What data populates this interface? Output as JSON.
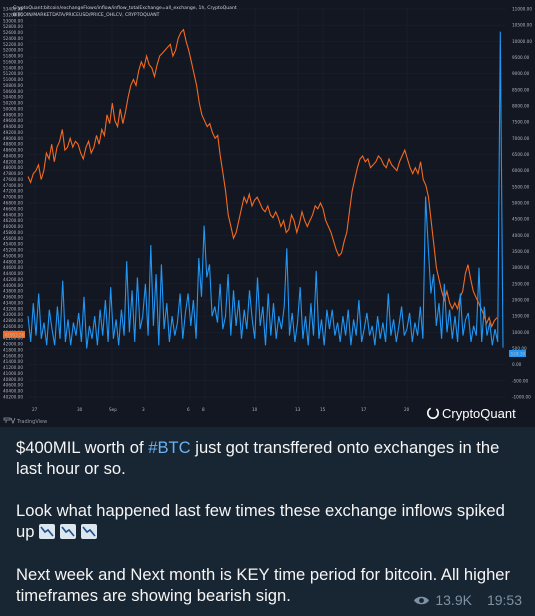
{
  "chart_header": {
    "line1": "CryptoQuant:bitcoin/exchangeFlows/inflow/inflow_totalExchange=all_exchange, 1h, CryptoQuant",
    "line2": "BITCOIN/MARKETDATA/PRICEUSD/PRICE_OHLCV, CRYPTOQUANT"
  },
  "brand": "CryptoQuant",
  "tv_logo": "TradingView",
  "colors": {
    "price": "#f26a21",
    "inflow": "#2196f3",
    "background": "#131722",
    "grid": "#1e2230"
  },
  "chart_data": {
    "type": "line",
    "x_ticks": [
      "27",
      "30",
      "Sep",
      "3",
      "6",
      "8",
      "10",
      "13",
      "15",
      "17",
      "20"
    ],
    "left_axis": {
      "ticks": [
        "53400.00",
        "53200.00",
        "53000.00",
        "52800.00",
        "52600.00",
        "52400.00",
        "52200.00",
        "52000.00",
        "51800.00",
        "51600.00",
        "51400.00",
        "51200.00",
        "51000.00",
        "50800.00",
        "50600.00",
        "50400.00",
        "50200.00",
        "50000.00",
        "49800.00",
        "49600.00",
        "49400.00",
        "49200.00",
        "49000.00",
        "48800.00",
        "48600.00",
        "48400.00",
        "48200.00",
        "48000.00",
        "47800.00",
        "47600.00",
        "47400.00",
        "47200.00",
        "47000.00",
        "46800.00",
        "46600.00",
        "46400.00",
        "46200.00",
        "46000.00",
        "45800.00",
        "45600.00",
        "45400.00",
        "45200.00",
        "45000.00",
        "44800.00",
        "44600.00",
        "44400.00",
        "44200.00",
        "44000.00",
        "43800.00",
        "43600.00",
        "43400.00",
        "43200.00",
        "43000.00",
        "42800.00",
        "42600.00",
        "42400.00",
        "42200.00",
        "42000.00",
        "41800.00",
        "41600.00",
        "41400.00",
        "41200.00",
        "41000.00",
        "40800.00",
        "40600.00",
        "40400.00",
        "40200.00"
      ],
      "range": [
        40200,
        53400
      ]
    },
    "right_axis": {
      "ticks": [
        "11000.00",
        "10500.00",
        "10000.00",
        "9500.00",
        "9000.00",
        "8500.00",
        "8000.00",
        "7500.00",
        "7000.00",
        "6500.00",
        "6000.00",
        "5500.00",
        "5000.00",
        "4500.00",
        "4000.00",
        "3500.00",
        "3000.00",
        "2500.00",
        "2000.00",
        "1500.00",
        "1000.00",
        "500.00",
        "0.00",
        "-500.00",
        "-1000.00"
      ],
      "range": [
        -1000,
        11000
      ]
    },
    "current_price_label": "42903.58",
    "current_inflow_label": "528.39",
    "series": [
      {
        "axis": "left",
        "color": "#f26a21",
        "values": [
          47700,
          47500,
          47800,
          47900,
          48100,
          47600,
          47900,
          48500,
          48300,
          48800,
          48200,
          48700,
          48900,
          49300,
          48600,
          48700,
          49000,
          48700,
          48900,
          48800,
          48500,
          48300,
          48700,
          48900,
          48500,
          48700,
          49100,
          48800,
          49300,
          49100,
          49800,
          49500,
          50200,
          49600,
          49400,
          50000,
          49500,
          49900,
          50400,
          50800,
          51000,
          50800,
          51300,
          51600,
          51400,
          51800,
          51500,
          51400,
          51100,
          51500,
          51800,
          51900,
          52000,
          52100,
          52200,
          51800,
          52000,
          52400,
          52600,
          52700,
          52300,
          52000,
          51600,
          51200,
          50800,
          50200,
          49800,
          49600,
          49400,
          49500,
          49200,
          49000,
          49100,
          48400,
          47800,
          47200,
          46400,
          46000,
          45600,
          45800,
          46200,
          46600,
          47000,
          46800,
          47100,
          46700,
          46900,
          47000,
          46800,
          46600,
          46500,
          46700,
          46400,
          46300,
          46500,
          46300,
          46000,
          46200,
          45800,
          45900,
          46400,
          46200,
          45800,
          46100,
          46500,
          46200,
          46000,
          46200,
          46400,
          46700,
          46600,
          46800,
          46600,
          46200,
          46000,
          45800,
          45500,
          45200,
          45000,
          45100,
          45500,
          45800,
          46500,
          47200,
          47600,
          48000,
          48300,
          48400,
          48200,
          48300,
          48000,
          48100,
          48200,
          48400,
          48300,
          48100,
          48000,
          48300,
          48100,
          48000,
          47900,
          48200,
          48400,
          48600,
          48300,
          48000,
          47800,
          48000,
          47800,
          48200,
          47600,
          47400,
          47000,
          46200,
          45400,
          44600,
          44200,
          43800,
          43500,
          43800,
          43400,
          43200,
          43400,
          43200,
          43600,
          43800,
          44400,
          44700,
          44200,
          43800,
          43600,
          43400,
          43200,
          43000,
          42700,
          42900,
          42600,
          42800,
          42900
        ]
      },
      {
        "axis": "right",
        "color": "#2196f3",
        "values": [
          1500,
          700,
          1900,
          900,
          2200,
          800,
          1300,
          600,
          1700,
          1100,
          600,
          1800,
          800,
          2600,
          700,
          1400,
          600,
          1300,
          900,
          1600,
          700,
          2100,
          500,
          1200,
          800,
          1500,
          600,
          1700,
          900,
          2000,
          700,
          2400,
          800,
          1400,
          600,
          1700,
          900,
          3200,
          1000,
          2300,
          700,
          2700,
          1100,
          1500,
          2500,
          900,
          3700,
          1200,
          2800,
          600,
          3100,
          1100,
          1900,
          700,
          1500,
          900,
          1300,
          2200,
          800,
          1600,
          2200,
          1200,
          2000,
          800,
          3300,
          2100,
          4300,
          2700,
          3100,
          1500,
          1800,
          1300,
          2500,
          1100,
          1500,
          2800,
          900,
          2300,
          1200,
          2000,
          800,
          1700,
          1100,
          2300,
          1400,
          800,
          2700,
          1200,
          1800,
          600,
          2200,
          900,
          1900,
          800,
          1500,
          1100,
          1800,
          3600,
          900,
          1600,
          700,
          1300,
          2400,
          800,
          1500,
          600,
          1900,
          900,
          2900,
          800,
          1400,
          600,
          1700,
          1100,
          1700,
          900,
          1300,
          700,
          1500,
          900,
          1700,
          600,
          1400,
          900,
          2000,
          700,
          1100,
          1600,
          900,
          1200,
          600,
          1500,
          800,
          1300,
          700,
          2200,
          900,
          1400,
          700,
          1200,
          1800,
          900,
          1100,
          1600,
          700,
          1300,
          900,
          1800,
          800,
          5200,
          3600,
          2200,
          2800,
          1200,
          1900,
          800,
          2500,
          1000,
          1700,
          800,
          1500,
          700,
          2200,
          900,
          1400,
          1600,
          700,
          1200,
          900,
          3000,
          700,
          1800,
          900,
          1300,
          600,
          1100,
          700,
          10300,
          528
        ]
      }
    ]
  },
  "message": {
    "p1_pre": "$400MIL worth of ",
    "p1_tag": "#BTC",
    "p1_post": " just got transffered onto exchanges in the",
    "p1_line2": "last hour or so.",
    "p2_line1": "Look what happened last few times these exchange inflows spiked",
    "p2_line2": "up",
    "p2_emojis": [
      "chart-decreasing-icon",
      "chart-decreasing-icon",
      "chart-decreasing-icon"
    ],
    "p3_line1": "Next week and Next month is KEY time period for bitcoin. All higher",
    "p3_line2": "timeframes are showing bearish sign."
  },
  "meta": {
    "views": "13.9K",
    "time": "19:53"
  }
}
